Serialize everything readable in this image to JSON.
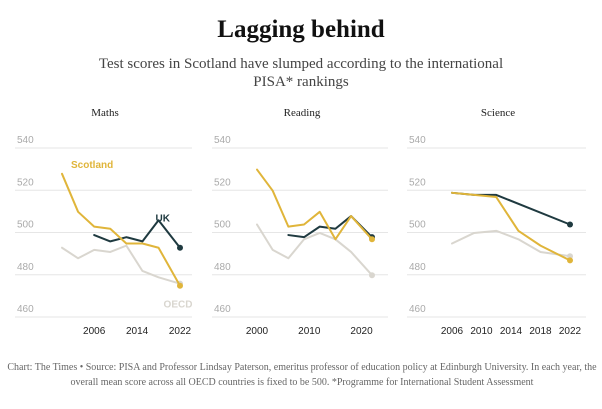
{
  "title": "Lagging behind",
  "subtitle": "Test scores in Scotland have slumped according to the international PISA* rankings",
  "footer": "Chart: The Times • Source: PISA and Professor Lindsay Paterson, emeritus professor of education policy at Edinburgh University. In each year, the overall mean score across all OECD countries is fixed to be 500. *Programme for International Student Assessment",
  "colors": {
    "scotland": "#e0b53a",
    "uk": "#1f3a40",
    "oecd": "#d9d6cf",
    "grid": "#e6e6e6"
  },
  "chart_data": [
    {
      "type": "line",
      "title": "Maths",
      "ylim": [
        460,
        540
      ],
      "yticks": [
        460,
        480,
        500,
        520,
        540
      ],
      "xlim": [
        2000,
        2022
      ],
      "xticks": [
        2006,
        2014,
        2022
      ],
      "series": [
        {
          "name": "Scotland",
          "color": "#e0b53a",
          "x": [
            2000,
            2003,
            2006,
            2009,
            2012,
            2015,
            2018,
            2022
          ],
          "y": [
            524,
            506,
            499,
            498,
            491,
            491,
            489,
            471
          ]
        },
        {
          "name": "UK",
          "color": "#1f3a40",
          "x": [
            2006,
            2009,
            2012,
            2015,
            2018,
            2022
          ],
          "y": [
            495,
            492,
            494,
            492,
            502,
            489
          ]
        },
        {
          "name": "OECD",
          "color": "#d9d6cf",
          "x": [
            2000,
            2003,
            2006,
            2009,
            2012,
            2015,
            2018,
            2022
          ],
          "y": [
            489,
            484,
            488,
            487,
            490,
            478,
            475,
            472
          ]
        }
      ],
      "annotations": [
        {
          "text": "Scotland",
          "series": "Scotland"
        },
        {
          "text": "UK",
          "series": "UK"
        },
        {
          "text": "OECD",
          "series": "OECD"
        }
      ]
    },
    {
      "type": "line",
      "title": "Reading",
      "ylim": [
        460,
        540
      ],
      "yticks": [
        460,
        480,
        500,
        520,
        540
      ],
      "xlim": [
        2000,
        2022
      ],
      "xticks": [
        2000,
        2010,
        2020
      ],
      "series": [
        {
          "name": "Scotland",
          "color": "#e0b53a",
          "x": [
            2000,
            2003,
            2006,
            2009,
            2012,
            2015,
            2018,
            2022
          ],
          "y": [
            526,
            516,
            499,
            500,
            506,
            493,
            504,
            493
          ]
        },
        {
          "name": "UK",
          "color": "#1f3a40",
          "x": [
            2006,
            2009,
            2012,
            2015,
            2018,
            2022
          ],
          "y": [
            495,
            494,
            499,
            498,
            504,
            494
          ]
        },
        {
          "name": "OECD",
          "color": "#d9d6cf",
          "x": [
            2000,
            2003,
            2006,
            2009,
            2012,
            2015,
            2018,
            2022
          ],
          "y": [
            500,
            488,
            484,
            493,
            496,
            493,
            487,
            476
          ]
        }
      ]
    },
    {
      "type": "line",
      "title": "Science",
      "ylim": [
        460,
        540
      ],
      "yticks": [
        460,
        480,
        500,
        520,
        540
      ],
      "xlim": [
        2006,
        2022
      ],
      "xticks": [
        2006,
        2010,
        2014,
        2018,
        2022
      ],
      "series": [
        {
          "name": "Scotland",
          "color": "#e0b53a",
          "x": [
            2006,
            2009,
            2012,
            2015,
            2018,
            2022
          ],
          "y": [
            515,
            514,
            513,
            497,
            490,
            483
          ]
        },
        {
          "name": "UK",
          "color": "#1f3a40",
          "x": [
            2006,
            2009,
            2012,
            2022
          ],
          "y": [
            515,
            514,
            514,
            500
          ]
        },
        {
          "name": "OECD",
          "color": "#d9d6cf",
          "x": [
            2006,
            2009,
            2012,
            2015,
            2018,
            2022
          ],
          "y": [
            491,
            496,
            497,
            493,
            487,
            485
          ]
        }
      ]
    }
  ]
}
